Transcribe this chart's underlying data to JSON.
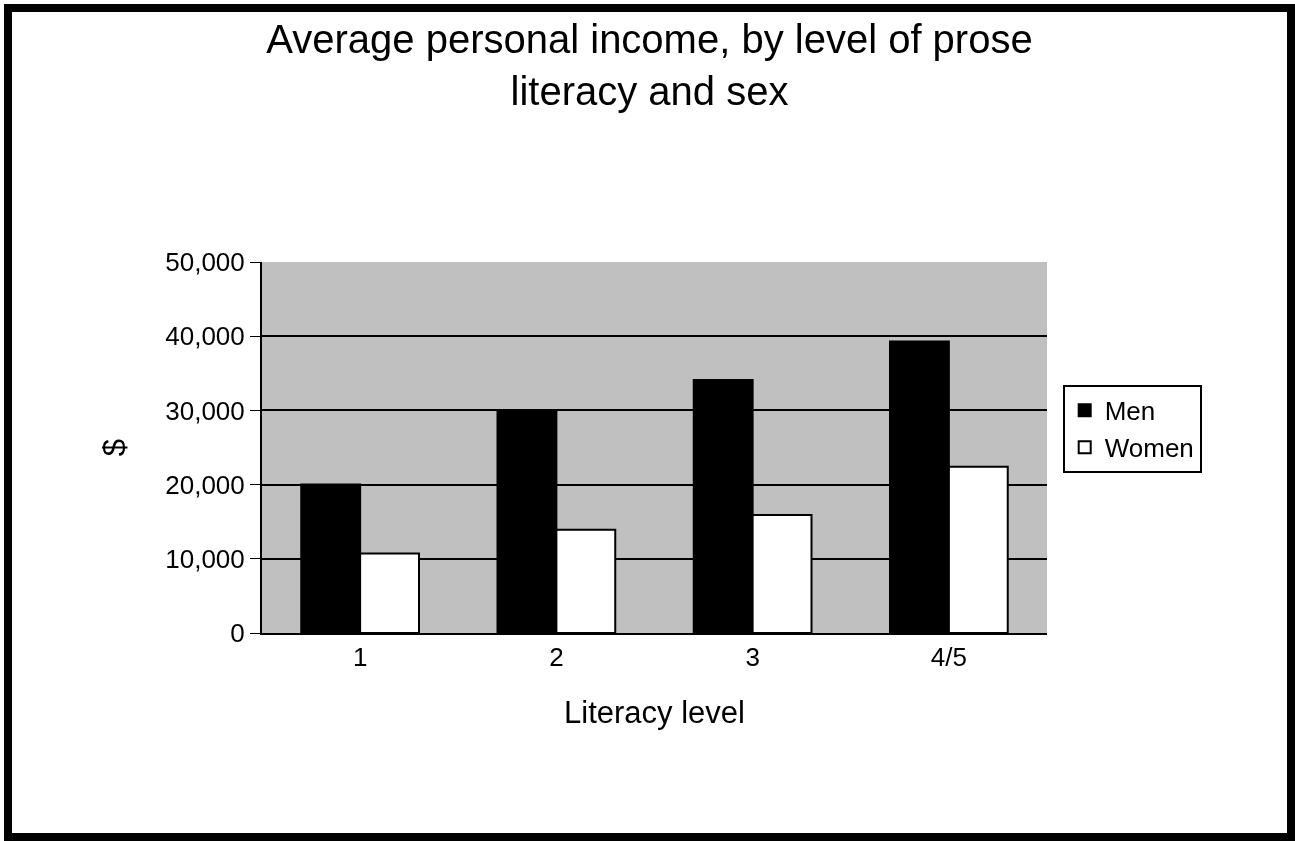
{
  "chart_data": {
    "type": "bar",
    "title": "Average personal income, by level of prose\nliteracy and sex",
    "xlabel": "Literacy level",
    "ylabel": "$",
    "categories": [
      "1",
      "2",
      "3",
      "4/5"
    ],
    "series": [
      {
        "name": "Men",
        "color": "#000000",
        "values": [
          20000,
          29800,
          34100,
          39300
        ]
      },
      {
        "name": "Women",
        "color": "#ffffff",
        "values": [
          10700,
          13900,
          15900,
          22400
        ]
      }
    ],
    "ylim": [
      0,
      50000
    ],
    "yticks": [
      {
        "value": 0,
        "label": "0"
      },
      {
        "value": 10000,
        "label": "10,000"
      },
      {
        "value": 20000,
        "label": "20,000"
      },
      {
        "value": 30000,
        "label": "30,000"
      },
      {
        "value": 40000,
        "label": "40,000"
      },
      {
        "value": 50000,
        "label": "50,000"
      }
    ],
    "grid": "y",
    "legend": "right"
  }
}
